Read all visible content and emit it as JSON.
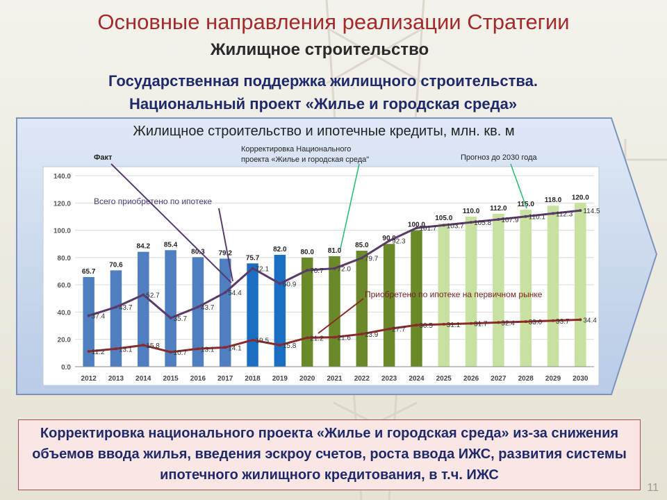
{
  "slide": {
    "title": "Основные направления реализации Стратегии",
    "subtitle": "Жилищное строительство",
    "heading_line1": "Государственная поддержка жилищного строительства.",
    "heading_line2": "Национальный проект «Жилье и городская среда»",
    "bottom_text": "Корректировка национального проекта «Жилье и городская среда» из-за снижения объемов ввода жилья, введения эскроу счетов, роста ввода ИЖС, развития системы ипотечного жилищного кредитования, в т.ч. ИЖС",
    "page_number": "11"
  },
  "chart_data": {
    "type": "bar",
    "title": "Жилищное строительство и ипотечные кредиты, млн. кв. м",
    "categories": [
      "2012",
      "2013",
      "2014",
      "2015",
      "2016",
      "2017",
      "2018",
      "2019",
      "2020",
      "2021",
      "2022",
      "2023",
      "2024",
      "2025",
      "2026",
      "2027",
      "2028",
      "2029",
      "2030"
    ],
    "ylim": [
      0,
      140
    ],
    "yticks": [
      "0.0",
      "20.0",
      "40.0",
      "60.0",
      "80.0",
      "100.0",
      "120.0",
      "140.0"
    ],
    "grid": true,
    "series": [
      {
        "kind": "bar",
        "values": [
          65.7,
          70.6,
          84.2,
          85.4,
          80.3,
          79.2,
          75.7,
          82.0,
          80.0,
          81.0,
          85.0,
          90.0,
          100.0,
          105.0,
          110.0,
          112.0,
          115.0,
          118.0,
          120.0
        ],
        "labels": [
          "65.7",
          "70.6",
          "84.2",
          "85.4",
          "80.3",
          "79.2",
          "75.7",
          "82.0",
          "80.0",
          "81.0",
          "85.0",
          "90.0",
          "100.0",
          "105.0",
          "110.0",
          "112.0",
          "115.0",
          "118.0",
          "120.0"
        ],
        "colors": [
          "#4f7fc0",
          "#4f7fc0",
          "#4f7fc0",
          "#4f7fc0",
          "#4f7fc0",
          "#4f7fc0",
          "#1a6fc4",
          "#1a6fc4",
          "#6a8a2a",
          "#6a8a2a",
          "#6a8a2a",
          "#6a8a2a",
          "#6a8a2a",
          "#c8e0a0",
          "#c8e0a0",
          "#c8e0a0",
          "#c8e0a0",
          "#c8e0a0",
          "#c8e0a0"
        ]
      },
      {
        "kind": "line",
        "name": "Всего приобретено по ипотеке",
        "values": [
          37.4,
          43.7,
          52.7,
          35.7,
          43.7,
          54.4,
          72.1,
          60.9,
          70.7,
          72.0,
          79.7,
          92.3,
          101.7,
          103.7,
          105.8,
          107.9,
          110.1,
          112.3,
          114.5
        ],
        "labels": [
          "37.4",
          "43.7",
          "52.7",
          "35.7",
          "43.7",
          "54.4",
          "72.1",
          "60.9",
          "70.7",
          "72.0",
          "79.7",
          "92.3",
          "101.7",
          "103.7",
          "105.8",
          "107.9",
          "110.1",
          "112.3",
          "114.5"
        ],
        "color": "#5a3a6a"
      },
      {
        "kind": "line",
        "name": "Приобретено по ипотеке  на первичном рынке",
        "values": [
          11.2,
          13.1,
          15.8,
          10.7,
          13.1,
          14.1,
          19.5,
          15.8,
          21.2,
          21.6,
          23.9,
          27.7,
          30.5,
          31.1,
          31.7,
          32.4,
          33.0,
          33.7,
          34.4
        ],
        "labels": [
          "11.2",
          "13.1",
          "15.8",
          "10.7",
          "13.1",
          "14.1",
          "19.5",
          "15.8",
          "21.2",
          "21.6",
          "23.9",
          "27.7",
          "30.5",
          "31.1",
          "31.7",
          "32.4",
          "33.0",
          "33.7",
          "34.4"
        ],
        "color": "#8a2a2a"
      }
    ],
    "annotations": {
      "fact": "Факт",
      "correction_line1": "Корректировка Национального",
      "correction_line2": "проекта «Жилье и городская среда\"",
      "forecast": "Прогноз до 2030 года"
    },
    "colors": {
      "fact_bar": "#4f7fc0",
      "fact_bar_dark": "#1a6fc4",
      "correction_bar": "#6a8a2a",
      "forecast_bar": "#c8e0a0",
      "total_line": "#5a3a6a",
      "primary_line": "#8a2a2a",
      "green_arrow": "#1fbf6a"
    }
  }
}
